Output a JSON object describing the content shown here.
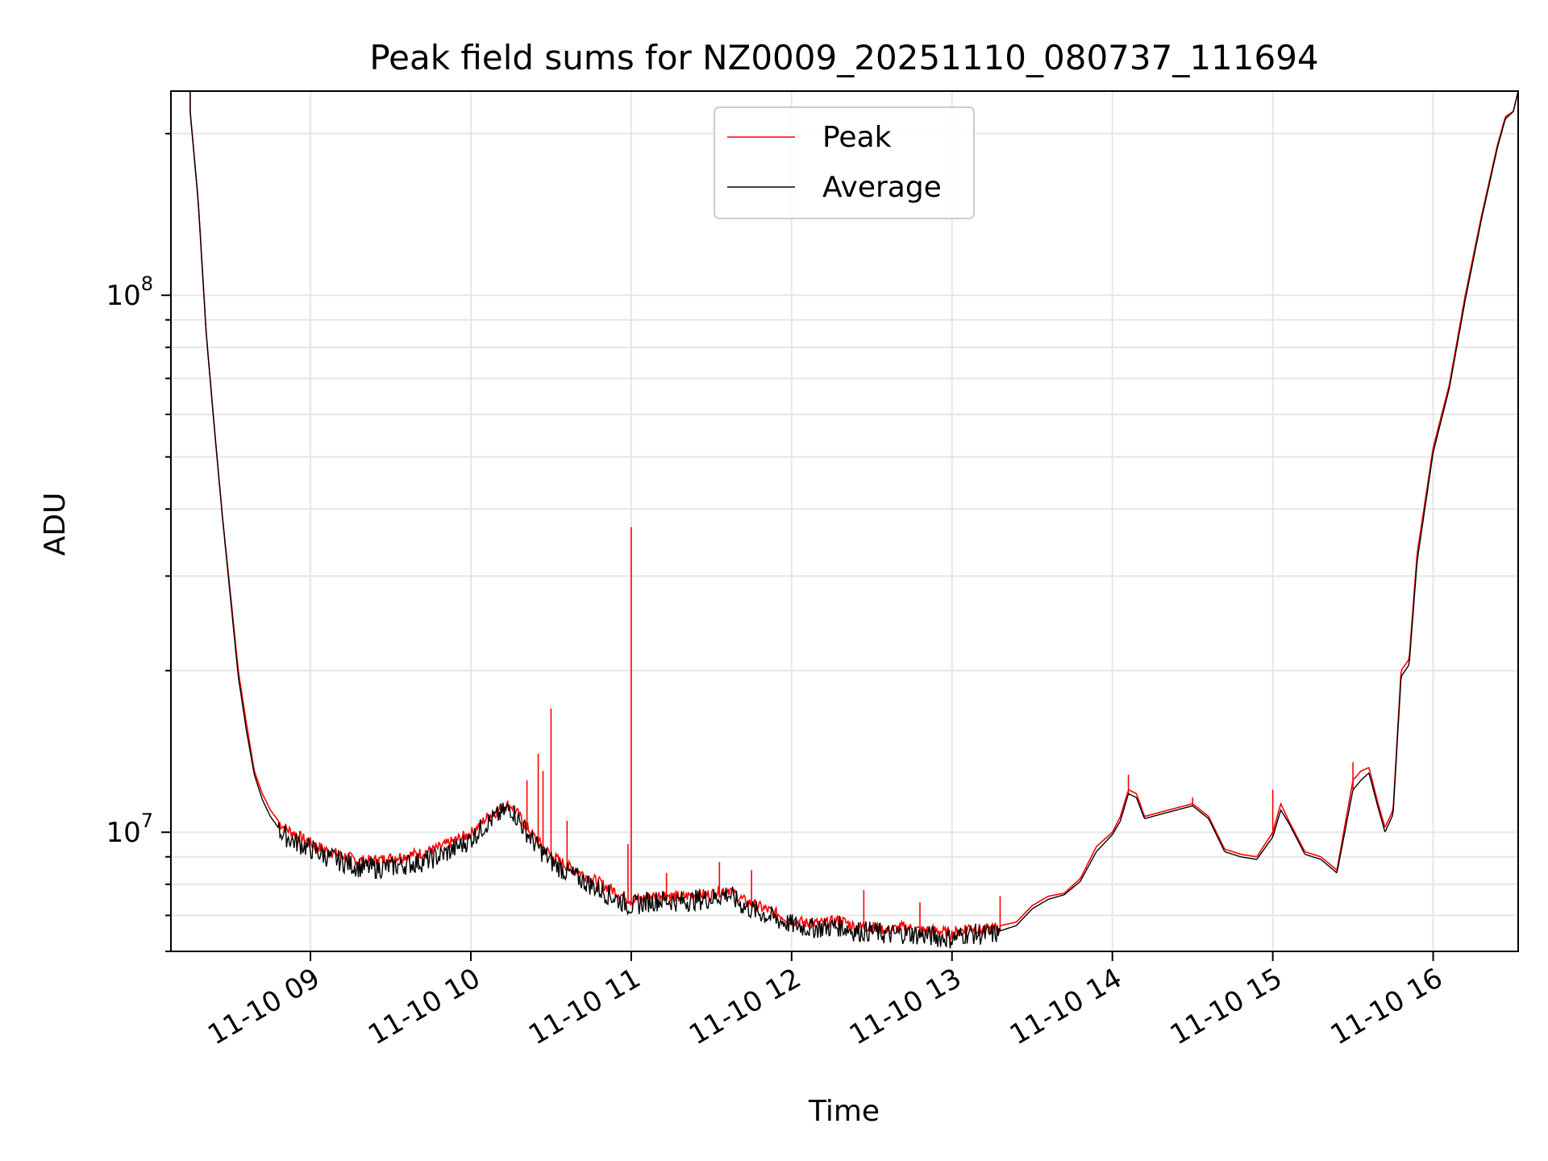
{
  "chart_data": {
    "type": "line",
    "title": "Peak field sums for NZ0009_20251110_080737_111694",
    "xlabel": "Time",
    "ylabel": "ADU",
    "yscale": "log",
    "ylim": [
      6000000,
      240000000
    ],
    "xlim_hours": [
      8.13,
      16.53
    ],
    "grid": true,
    "legend_position": "upper-center",
    "x_ticks": [
      {
        "hour": 9,
        "label": "11-10 09"
      },
      {
        "hour": 10,
        "label": "11-10 10"
      },
      {
        "hour": 11,
        "label": "11-10 11"
      },
      {
        "hour": 12,
        "label": "11-10 12"
      },
      {
        "hour": 13,
        "label": "11-10 13"
      },
      {
        "hour": 14,
        "label": "11-10 14"
      },
      {
        "hour": 15,
        "label": "11-10 15"
      },
      {
        "hour": 16,
        "label": "11-10 16"
      }
    ],
    "y_ticks": [
      {
        "value": 10000000,
        "base": "10",
        "exp": "7"
      },
      {
        "value": 100000000,
        "base": "10",
        "exp": "8"
      }
    ],
    "series": [
      {
        "name": "Peak",
        "color": "#ff0000",
        "x": [
          8.25,
          8.3,
          8.35,
          8.4,
          8.45,
          8.5,
          8.55,
          8.6,
          8.65,
          8.7,
          8.75,
          8.8,
          8.85,
          8.9,
          9.0,
          9.1,
          9.2,
          9.3,
          9.4,
          9.5,
          9.6,
          9.7,
          9.8,
          9.9,
          10.0,
          10.1,
          10.2,
          10.25,
          10.3,
          10.4,
          10.5,
          10.6,
          10.7,
          10.8,
          10.9,
          11.0,
          11.1,
          11.2,
          11.3,
          11.4,
          11.5,
          11.6,
          11.7,
          11.8,
          11.9,
          12.0,
          12.1,
          12.2,
          12.3,
          12.4,
          12.5,
          12.6,
          12.7,
          12.8,
          12.9,
          13.0,
          13.1,
          13.2,
          13.3,
          13.4,
          13.5,
          13.6,
          13.7,
          13.8,
          13.9,
          14.0,
          14.05,
          14.1,
          14.15,
          14.2,
          14.3,
          14.4,
          14.5,
          14.6,
          14.7,
          14.8,
          14.9,
          15.0,
          15.05,
          15.1,
          15.2,
          15.3,
          15.4,
          15.5,
          15.55,
          15.6,
          15.65,
          15.7,
          15.75,
          15.8,
          15.85,
          15.9,
          16.0,
          16.1,
          16.2,
          16.3,
          16.4,
          16.45,
          16.5
        ],
        "y": [
          220000000,
          150000000,
          85000000,
          57000000,
          39000000,
          28000000,
          20000000,
          16000000,
          13000000,
          11800000,
          11000000,
          10500000,
          10200000,
          10000000,
          9600000,
          9300000,
          9100000,
          8900000,
          8900000,
          9000000,
          9100000,
          9200000,
          9400000,
          9700000,
          10000000,
          10700000,
          11200000,
          11300000,
          10800000,
          9800000,
          9100000,
          8700000,
          8400000,
          8100000,
          7800000,
          7500000,
          7600000,
          7700000,
          7600000,
          7700000,
          7700000,
          7900000,
          7500000,
          7300000,
          7100000,
          6900000,
          6800000,
          6800000,
          6900000,
          6700000,
          6700000,
          6600000,
          6700000,
          6600000,
          6600000,
          6500000,
          6700000,
          6600000,
          6700000,
          6800000,
          7300000,
          7600000,
          7700000,
          8200000,
          9400000,
          10000000,
          10700000,
          12000000,
          11800000,
          10700000,
          10900000,
          11100000,
          11300000,
          10700000,
          9300000,
          9100000,
          9000000,
          10000000,
          11300000,
          10500000,
          9200000,
          9000000,
          8500000,
          12500000,
          13000000,
          13200000,
          11500000,
          10200000,
          11000000,
          20000000,
          21000000,
          33000000,
          52000000,
          68000000,
          100000000,
          140000000,
          190000000,
          215000000,
          220000000
        ]
      },
      {
        "name": "Average",
        "color": "#000000",
        "x": [
          8.25,
          8.3,
          8.35,
          8.4,
          8.45,
          8.5,
          8.55,
          8.6,
          8.65,
          8.7,
          8.75,
          8.8,
          8.85,
          8.9,
          9.0,
          9.1,
          9.2,
          9.3,
          9.4,
          9.5,
          9.6,
          9.7,
          9.8,
          9.9,
          10.0,
          10.1,
          10.2,
          10.25,
          10.3,
          10.4,
          10.5,
          10.6,
          10.7,
          10.8,
          10.9,
          11.0,
          11.1,
          11.2,
          11.3,
          11.4,
          11.5,
          11.6,
          11.7,
          11.8,
          11.9,
          12.0,
          12.1,
          12.2,
          12.3,
          12.4,
          12.5,
          12.6,
          12.7,
          12.8,
          12.9,
          13.0,
          13.1,
          13.2,
          13.3,
          13.4,
          13.5,
          13.6,
          13.7,
          13.8,
          13.9,
          14.0,
          14.05,
          14.1,
          14.15,
          14.2,
          14.3,
          14.4,
          14.5,
          14.6,
          14.7,
          14.8,
          14.9,
          15.0,
          15.05,
          15.1,
          15.2,
          15.3,
          15.4,
          15.5,
          15.55,
          15.6,
          15.65,
          15.7,
          15.75,
          15.8,
          15.85,
          15.9,
          16.0,
          16.1,
          16.2,
          16.3,
          16.4,
          16.45,
          16.5
        ],
        "y": [
          220000000,
          150000000,
          85000000,
          57000000,
          39000000,
          27500000,
          19500000,
          15500000,
          12800000,
          11500000,
          10700000,
          10200000,
          9900000,
          9700000,
          9400000,
          9100000,
          8900000,
          8700000,
          8650000,
          8700000,
          8800000,
          8900000,
          9100000,
          9400000,
          9800000,
          10500000,
          11000000,
          11200000,
          10600000,
          9600000,
          8900000,
          8500000,
          8200000,
          7900000,
          7600000,
          7350000,
          7500000,
          7550000,
          7500000,
          7550000,
          7600000,
          7750000,
          7350000,
          7150000,
          6950000,
          6800000,
          6700000,
          6700000,
          6750000,
          6600000,
          6600000,
          6500000,
          6550000,
          6500000,
          6450000,
          6400000,
          6550000,
          6500000,
          6550000,
          6700000,
          7200000,
          7500000,
          7650000,
          8100000,
          9200000,
          9900000,
          10500000,
          11800000,
          11600000,
          10600000,
          10800000,
          11000000,
          11200000,
          10600000,
          9200000,
          9000000,
          8900000,
          9800000,
          11000000,
          10400000,
          9100000,
          8900000,
          8400000,
          12000000,
          12500000,
          12900000,
          11300000,
          10000000,
          10800000,
          19500000,
          20500000,
          32000000,
          51000000,
          67000000,
          98000000,
          138000000,
          188000000,
          213000000,
          220000000
        ]
      }
    ],
    "spikes": [
      {
        "x": 10.5,
        "y": 17000000
      },
      {
        "x": 10.42,
        "y": 14000000
      },
      {
        "x": 10.45,
        "y": 13000000
      },
      {
        "x": 10.35,
        "y": 12500000
      },
      {
        "x": 10.6,
        "y": 10500000
      },
      {
        "x": 10.98,
        "y": 9500000
      },
      {
        "x": 11.0,
        "y": 37000000
      },
      {
        "x": 11.22,
        "y": 8400000
      },
      {
        "x": 11.55,
        "y": 8800000
      },
      {
        "x": 11.75,
        "y": 8500000
      },
      {
        "x": 12.45,
        "y": 7800000
      },
      {
        "x": 12.8,
        "y": 7400000
      },
      {
        "x": 13.3,
        "y": 7600000
      },
      {
        "x": 14.1,
        "y": 12800000
      },
      {
        "x": 14.5,
        "y": 11600000
      },
      {
        "x": 15.0,
        "y": 12000000
      },
      {
        "x": 15.5,
        "y": 13500000
      }
    ]
  }
}
